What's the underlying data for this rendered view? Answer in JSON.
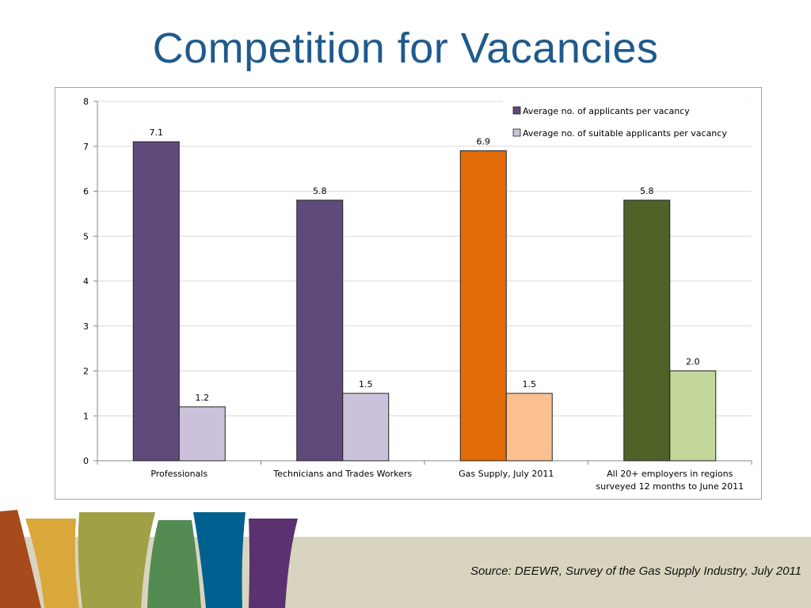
{
  "slide": {
    "title": "Competition for Vacancies",
    "source": "Source: DEEWR, Survey of the Gas Supply Industry, July 2011"
  },
  "chart_data": {
    "type": "bar",
    "categories": [
      [
        "Professionals"
      ],
      [
        "Technicians and Trades Workers"
      ],
      [
        "Gas Supply, July 2011"
      ],
      [
        "All 20+ employers in regions",
        "surveyed 12 months to June 2011"
      ]
    ],
    "series": [
      {
        "name": "Average no. of applicants per vacancy",
        "values": [
          7.1,
          5.8,
          6.9,
          5.8
        ],
        "value_labels": [
          "7.1",
          "5.8",
          "6.9",
          "5.8"
        ],
        "colors": [
          "#604a7b",
          "#604a7b",
          "#e36c0a",
          "#4f6228"
        ]
      },
      {
        "name": "Average no. of suitable applicants per vacancy",
        "values": [
          1.2,
          1.5,
          1.5,
          2.0
        ],
        "value_labels": [
          "1.2",
          "1.5",
          "1.5",
          "2.0"
        ],
        "colors": [
          "#ccc1da",
          "#ccc1da",
          "#fac090",
          "#c3d69b"
        ]
      }
    ],
    "legend_colors": [
      "#604a7b",
      "#ccc1da"
    ],
    "ylim": [
      0,
      8
    ],
    "yticks": [
      "0",
      "1",
      "2",
      "3",
      "4",
      "5",
      "6",
      "7",
      "8"
    ],
    "grid": true,
    "legend_position": "top-right"
  }
}
